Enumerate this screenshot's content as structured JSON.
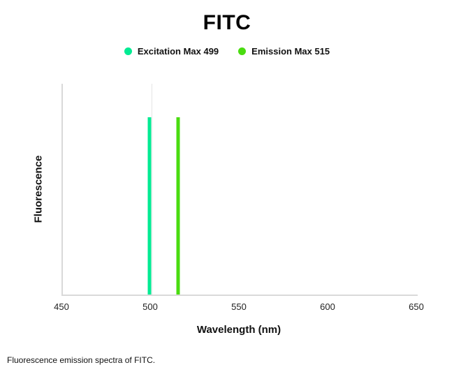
{
  "caption": "Fluorescence emission spectra of FITC.",
  "colors": {
    "axis": "#d9d9d9",
    "gridline": "#e4e4e4",
    "excitation": "#00EB93",
    "emission": "#4ADC10"
  },
  "chart_data": {
    "type": "line",
    "title": "FITC",
    "xlabel": "Wavelength (nm)",
    "ylabel": "Fluorescence",
    "xlim": [
      450,
      650
    ],
    "x_ticks": [
      450,
      500,
      550,
      600,
      650
    ],
    "gridlines_x": [
      500
    ],
    "grid": "minimal",
    "legend_position": "top",
    "ylim": [
      0,
      1
    ],
    "series": [
      {
        "name": "Excitation Max 499",
        "peak_nm": 499,
        "relative_height": 0.84,
        "color": "#00EB93"
      },
      {
        "name": "Emission Max 515",
        "peak_nm": 515,
        "relative_height": 0.84,
        "color": "#4ADC10"
      }
    ]
  }
}
